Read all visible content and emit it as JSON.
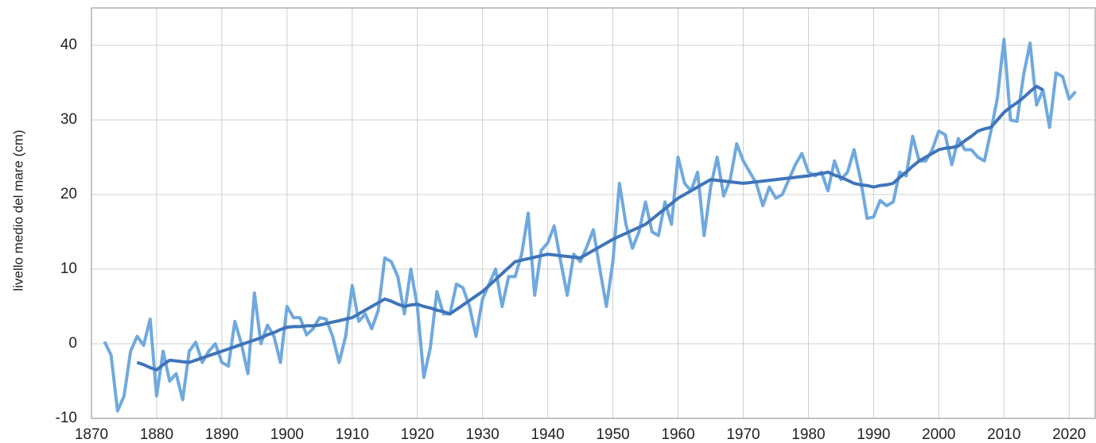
{
  "chart_data": {
    "type": "line",
    "ylabel": "livello medio del mare (cm)",
    "x": [
      1872,
      1873,
      1874,
      1875,
      1876,
      1877,
      1878,
      1879,
      1880,
      1881,
      1882,
      1883,
      1884,
      1885,
      1886,
      1887,
      1888,
      1889,
      1890,
      1891,
      1892,
      1893,
      1894,
      1895,
      1896,
      1897,
      1898,
      1899,
      1900,
      1901,
      1902,
      1903,
      1904,
      1905,
      1906,
      1907,
      1908,
      1909,
      1910,
      1911,
      1912,
      1913,
      1914,
      1915,
      1916,
      1917,
      1918,
      1919,
      1920,
      1921,
      1922,
      1923,
      1924,
      1925,
      1926,
      1927,
      1928,
      1929,
      1930,
      1931,
      1932,
      1933,
      1934,
      1935,
      1936,
      1937,
      1938,
      1939,
      1940,
      1941,
      1942,
      1943,
      1944,
      1945,
      1946,
      1947,
      1948,
      1949,
      1950,
      1951,
      1952,
      1953,
      1954,
      1955,
      1956,
      1957,
      1958,
      1959,
      1960,
      1961,
      1962,
      1963,
      1964,
      1965,
      1966,
      1967,
      1968,
      1969,
      1970,
      1971,
      1972,
      1973,
      1974,
      1975,
      1976,
      1977,
      1978,
      1979,
      1980,
      1981,
      1982,
      1983,
      1984,
      1985,
      1986,
      1987,
      1988,
      1989,
      1990,
      1991,
      1992,
      1993,
      1994,
      1995,
      1996,
      1997,
      1998,
      1999,
      2000,
      2001,
      2002,
      2003,
      2004,
      2005,
      2006,
      2007,
      2008,
      2009,
      2010,
      2011,
      2012,
      2013,
      2014,
      2015,
      2016,
      2017,
      2018,
      2019,
      2020,
      2021
    ],
    "series": [
      {
        "color": "#6fa9de",
        "width": 4,
        "values": [
          0.3,
          -1.5,
          -9,
          -7,
          -1,
          1,
          -0.2,
          3.3,
          -7,
          -1,
          -5,
          -4,
          -7.5,
          -1,
          0.2,
          -2.5,
          -1,
          0,
          -2.5,
          -3,
          3,
          0,
          -4,
          6.8,
          0,
          2.5,
          1,
          -2.5,
          5,
          3.5,
          3.5,
          1.2,
          2,
          3.5,
          3.3,
          1,
          -2.5,
          1,
          7.8,
          3,
          4,
          2,
          4.5,
          11.5,
          11,
          9,
          4,
          10,
          5,
          -4.5,
          -0.5,
          7,
          4,
          4,
          8,
          7.5,
          5,
          1,
          6,
          8,
          10,
          5,
          9,
          9,
          12,
          17.5,
          6.5,
          12.5,
          13.5,
          15.8,
          11,
          6.5,
          12,
          11,
          13,
          15.3,
          10,
          5,
          11,
          21.5,
          16,
          12.8,
          15,
          19,
          15,
          14.5,
          19,
          16,
          25,
          21.5,
          20.5,
          23,
          14.5,
          21,
          25,
          19.8,
          22,
          26.8,
          24.5,
          23,
          21.5,
          18.5,
          21,
          19.5,
          20,
          22,
          24,
          25.5,
          23,
          22.5,
          23,
          20.5,
          24.5,
          22,
          23,
          26,
          22,
          16.8,
          17,
          19.2,
          18.5,
          19,
          23,
          22.5,
          27.8,
          24.5,
          24.5,
          26,
          28.5,
          28,
          24,
          27.5,
          26,
          26,
          25,
          24.5,
          28.5,
          33,
          40.8,
          30,
          29.8,
          36,
          40.3,
          32,
          34,
          29,
          36.3,
          35.8,
          32.8,
          33.8
        ]
      },
      {
        "color": "#3f74b9",
        "width": 4,
        "values": [
          null,
          null,
          null,
          null,
          null,
          -2.5,
          -2.8,
          -3.2,
          -3.5,
          -2.8,
          -2.2,
          -2.3,
          -2.4,
          -2.5,
          -2.2,
          -1.9,
          -1.6,
          -1.3,
          -1,
          -0.7,
          -0.4,
          -0.1,
          0.2,
          0.5,
          0.8,
          1.2,
          1.5,
          1.9,
          2.2,
          2.3,
          2.3,
          2.4,
          2.4,
          2.5,
          2.7,
          2.9,
          3.1,
          3.3,
          3.5,
          4,
          4.5,
          5,
          5.5,
          6,
          5.7,
          5.3,
          5,
          5.2,
          5.3,
          5,
          4.8,
          4.5,
          4.3,
          4,
          4.6,
          5.2,
          5.8,
          6.4,
          7,
          7.8,
          8.6,
          9.4,
          10.2,
          11,
          11.2,
          11.4,
          11.6,
          11.8,
          12,
          11.9,
          11.8,
          11.7,
          11.6,
          11.5,
          12,
          12.5,
          13,
          13.5,
          14,
          14.4,
          14.8,
          15.2,
          15.6,
          16,
          16.7,
          17.4,
          18.1,
          18.8,
          19.5,
          20,
          20.5,
          21,
          21.5,
          22,
          21.9,
          21.8,
          21.7,
          21.6,
          21.5,
          21.6,
          21.7,
          21.8,
          21.9,
          22,
          22.1,
          22.2,
          22.3,
          22.4,
          22.5,
          22.7,
          22.8,
          23,
          22.6,
          22.3,
          21.9,
          21.5,
          21.3,
          21.2,
          21,
          21.2,
          21.3,
          21.5,
          22.3,
          23,
          23.8,
          24.5,
          25,
          25.5,
          26,
          26.2,
          26.3,
          26.5,
          27.2,
          27.8,
          28.5,
          28.8,
          29,
          30,
          31,
          31.7,
          32.3,
          33,
          33.8,
          34.5,
          34,
          null,
          null,
          null,
          null,
          null
        ]
      }
    ],
    "xlim": [
      1870,
      2024
    ],
    "xticks": [
      1870,
      1880,
      1890,
      1900,
      1910,
      1920,
      1930,
      1940,
      1950,
      1960,
      1970,
      1980,
      1990,
      2000,
      2010,
      2020
    ],
    "ylim": [
      -10,
      45
    ],
    "yticks": [
      -10,
      0,
      10,
      20,
      30,
      40
    ],
    "grid": true
  }
}
